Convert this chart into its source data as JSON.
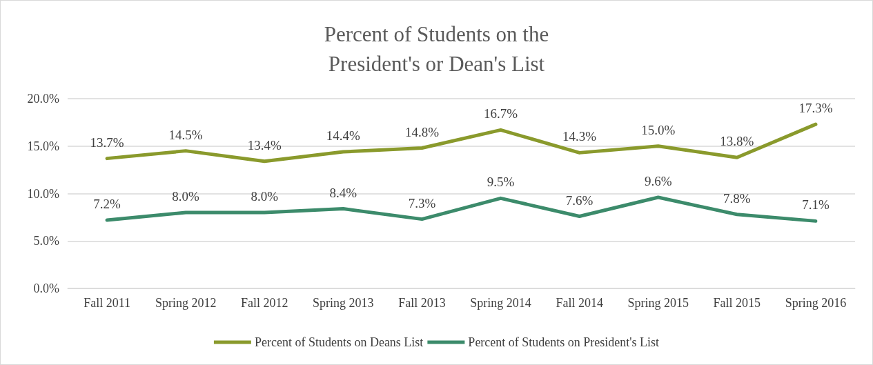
{
  "chart_data": {
    "type": "line",
    "title": "Percent of Students on the\nPresident's or Dean's List",
    "categories": [
      "Fall 2011",
      "Spring 2012",
      "Fall 2012",
      "Spring 2013",
      "Fall 2013",
      "Spring 2014",
      "Fall 2014",
      "Spring 2015",
      "Fall 2015",
      "Spring 2016"
    ],
    "series": [
      {
        "name": "Percent of Students on Deans List",
        "color": "#8a9a2c",
        "values": [
          13.7,
          14.5,
          13.4,
          14.4,
          14.8,
          16.7,
          14.3,
          15.0,
          13.8,
          17.3
        ],
        "value_labels": [
          "13.7%",
          "14.5%",
          "13.4%",
          "14.4%",
          "14.8%",
          "16.7%",
          "14.3%",
          "15.0%",
          "13.8%",
          "17.3%"
        ]
      },
      {
        "name": "Percent of Students on President's List",
        "color": "#3c8b6b",
        "values": [
          7.2,
          8.0,
          8.0,
          8.4,
          7.3,
          9.5,
          7.6,
          9.6,
          7.8,
          7.1
        ],
        "value_labels": [
          "7.2%",
          "8.0%",
          "8.0%",
          "8.4%",
          "7.3%",
          "9.5%",
          "7.6%",
          "9.6%",
          "7.8%",
          "7.1%"
        ]
      }
    ],
    "ylim": [
      0,
      20
    ],
    "yticks": [
      {
        "value": 0,
        "label": "0.0%"
      },
      {
        "value": 5,
        "label": "5.0%"
      },
      {
        "value": 10,
        "label": "10.0%"
      },
      {
        "value": 15,
        "label": "15.0%"
      },
      {
        "value": 20,
        "label": "20.0%"
      }
    ],
    "grid": "y",
    "legend": "bottom",
    "marker": "none",
    "line_style": "solid"
  }
}
